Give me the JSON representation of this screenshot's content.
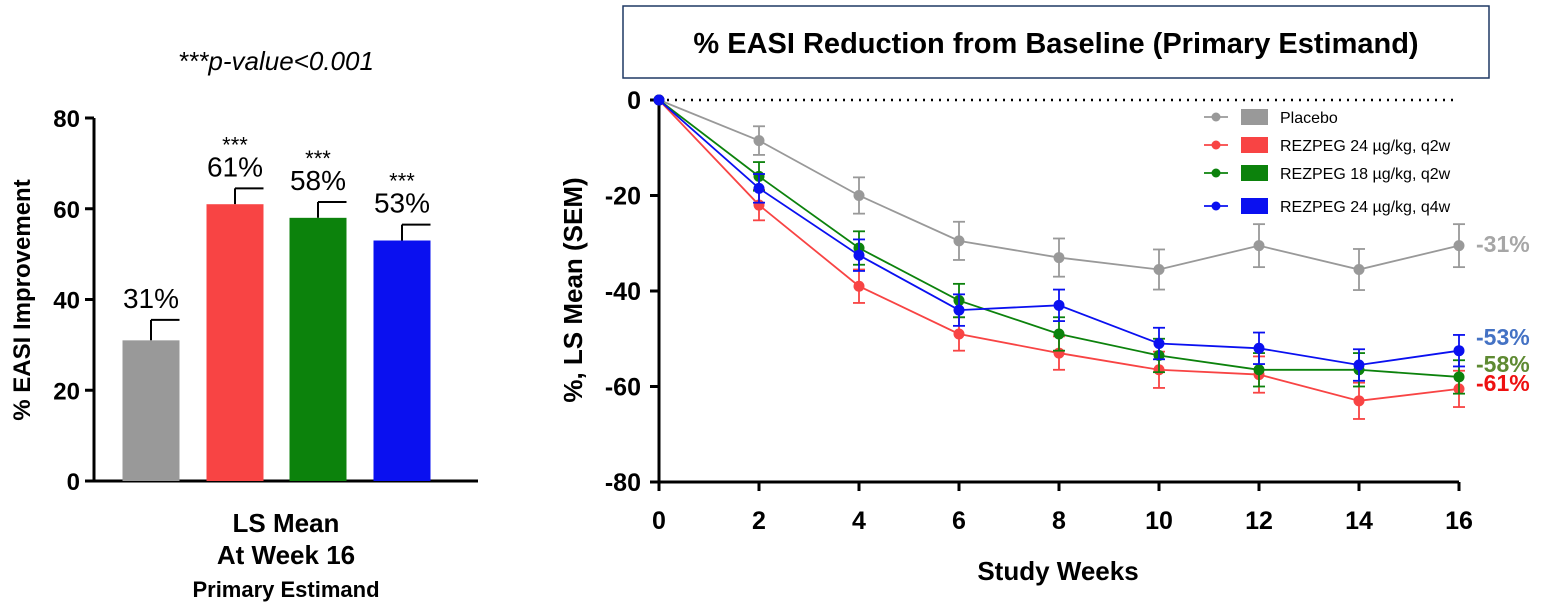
{
  "colors": {
    "placebo": "#999999",
    "rezpeg24q2w": "#f84444",
    "rezpeg18q2w": "#0c820c",
    "rezpeg24q4w": "#0a10f0",
    "label_placebo": "#a6a6a6",
    "label_q4w": "#4472c4",
    "label_18q2w": "#5e8a32",
    "label_24q2w": "#ee1111",
    "title_border": "#1f3864",
    "axis": "#000000"
  },
  "chart_data": [
    {
      "type": "bar",
      "annotation": "***p-value<0.001",
      "ylabel": "% EASI Improvement",
      "ylim": [
        0,
        80
      ],
      "yticks": [
        0,
        20,
        40,
        60,
        80
      ],
      "xlabel_lines": [
        "LS Mean",
        "At Week 16",
        "Primary Estimand"
      ],
      "bars": [
        {
          "name": "Placebo",
          "value": 31,
          "sem": 4.5,
          "label": "31%",
          "stars": "",
          "color_key": "placebo"
        },
        {
          "name": "REZPEG 24 µg/kg, q2w",
          "value": 61,
          "sem": 3.5,
          "label": "61%",
          "stars": "***",
          "color_key": "rezpeg24q2w"
        },
        {
          "name": "REZPEG 18 µg/kg, q2w",
          "value": 58,
          "sem": 3.5,
          "label": "58%",
          "stars": "***",
          "color_key": "rezpeg18q2w"
        },
        {
          "name": "REZPEG 24 µg/kg, q4w",
          "value": 53,
          "sem": 3.5,
          "label": "53%",
          "stars": "***",
          "color_key": "rezpeg24q4w"
        }
      ]
    },
    {
      "type": "line",
      "title": "% EASI Reduction from Baseline (Primary Estimand)",
      "xlabel": "Study Weeks",
      "ylabel": "%, LS Mean (SEM)",
      "xlim": [
        0,
        16
      ],
      "ylim": [
        -80,
        0
      ],
      "xticks": [
        0,
        2,
        4,
        6,
        8,
        10,
        12,
        14,
        16
      ],
      "yticks": [
        0,
        -20,
        -40,
        -60,
        -80
      ],
      "x": [
        0,
        2,
        4,
        6,
        8,
        10,
        12,
        14,
        16
      ],
      "series": [
        {
          "name": "Placebo",
          "color_key": "placebo",
          "values": [
            0,
            -8.5,
            -20,
            -29.5,
            -33,
            -35.5,
            -30.5,
            -35.5,
            -30.5
          ],
          "sem": [
            0,
            3,
            3.8,
            4,
            4,
            4.2,
            4.5,
            4.3,
            4.5
          ],
          "end_label": "-31%",
          "end_label_color_key": "label_placebo"
        },
        {
          "name": "REZPEG 24 µg/kg, q2w",
          "color_key": "rezpeg24q2w",
          "values": [
            0,
            -22,
            -39,
            -49,
            -53,
            -56.5,
            -57.5,
            -63,
            -60.5
          ],
          "sem": [
            0,
            3.2,
            3.5,
            3.5,
            3.5,
            3.8,
            3.8,
            3.8,
            3.8
          ],
          "end_label": "-61%",
          "end_label_color_key": "label_24q2w"
        },
        {
          "name": "REZPEG 18 µg/kg, q2w",
          "color_key": "rezpeg18q2w",
          "values": [
            0,
            -16,
            -31,
            -42,
            -49,
            -53.5,
            -56.5,
            -56.5,
            -58
          ],
          "sem": [
            0,
            3,
            3.5,
            3.5,
            3.5,
            3.5,
            3.5,
            3.5,
            3.5
          ],
          "end_label": "-58%",
          "end_label_color_key": "label_18q2w"
        },
        {
          "name": "REZPEG 24 µg/kg, q4w",
          "color_key": "rezpeg24q4w",
          "values": [
            0,
            -18.5,
            -32.5,
            -44,
            -43,
            -51,
            -52,
            -55.5,
            -52.5
          ],
          "sem": [
            0,
            3,
            3.3,
            3.3,
            3.3,
            3.3,
            3.3,
            3.3,
            3.3
          ],
          "end_label": "-53%",
          "end_label_color_key": "label_q4w"
        }
      ],
      "legend": [
        "Placebo",
        "REZPEG 24 µg/kg, q2w",
        "REZPEG 18 µg/kg, q2w",
        "REZPEG 24 µg/kg, q4w"
      ]
    }
  ]
}
